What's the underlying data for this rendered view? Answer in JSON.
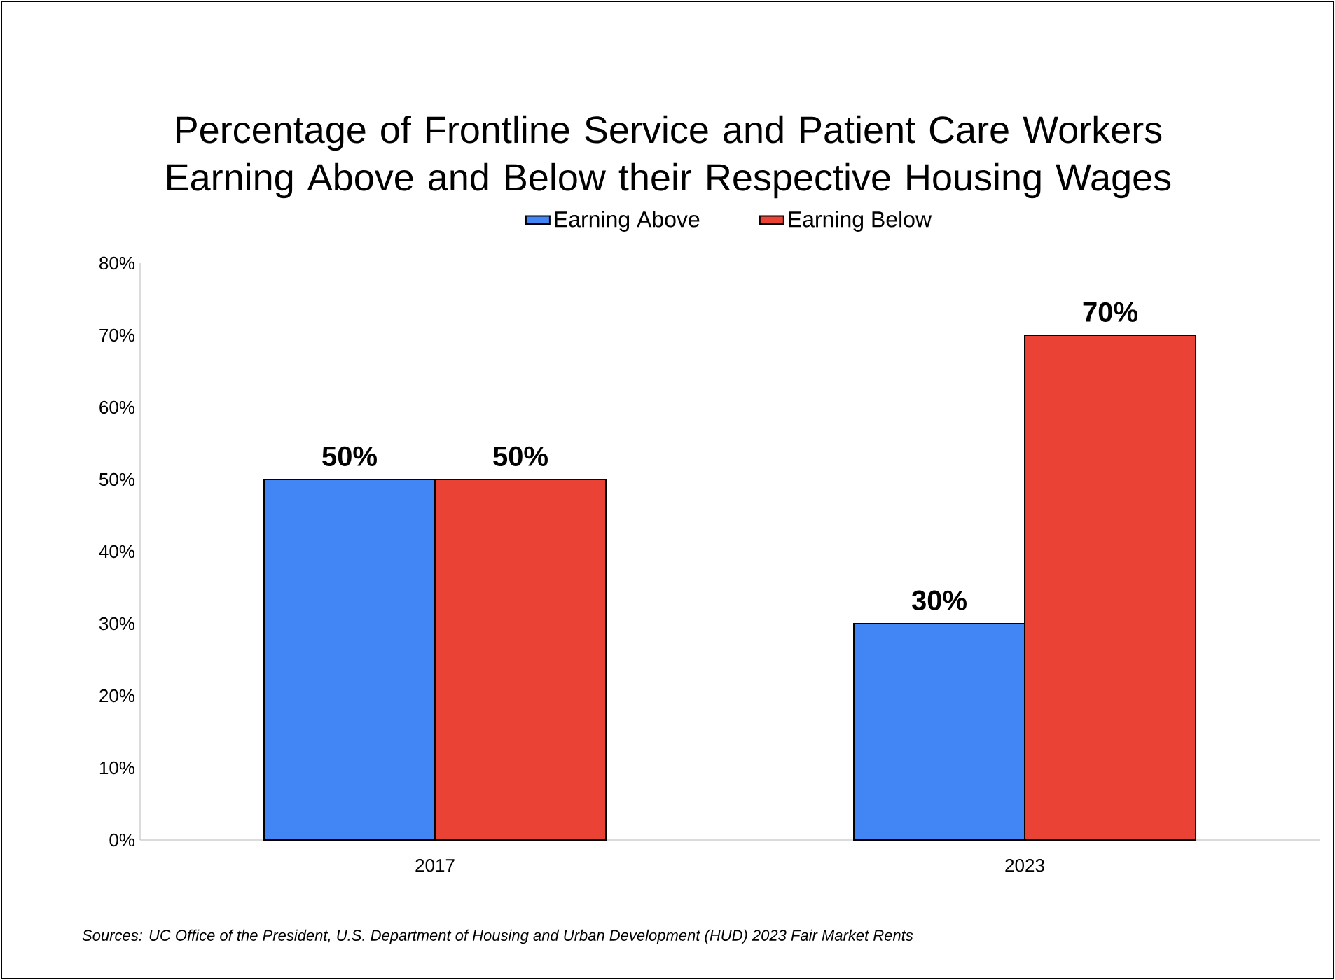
{
  "chart_data": {
    "type": "bar",
    "title": "Percentage of Frontline Service and Patient Care Workers Earning Above and Below their Respective Housing Wages",
    "categories": [
      "2017",
      "2023"
    ],
    "series": [
      {
        "name": "Earning Above",
        "color": "#4285f4",
        "values": [
          50,
          30
        ],
        "value_labels": [
          "50%",
          "30%"
        ]
      },
      {
        "name": "Earning Below",
        "color": "#ea4335",
        "values": [
          50,
          70
        ],
        "value_labels": [
          "50%",
          "70%"
        ]
      }
    ],
    "ylim": [
      0,
      80
    ],
    "yticks": [
      {
        "value": 0,
        "label": "0%"
      },
      {
        "value": 10,
        "label": "10%"
      },
      {
        "value": 20,
        "label": "20%"
      },
      {
        "value": 30,
        "label": "30%"
      },
      {
        "value": 40,
        "label": "40%"
      },
      {
        "value": 50,
        "label": "50%"
      },
      {
        "value": 60,
        "label": "60%"
      },
      {
        "value": 70,
        "label": "70%"
      },
      {
        "value": 80,
        "label": "80%"
      }
    ],
    "legend": "top",
    "annotations": [
      "Sources: UC Office of the President, U.S. Department of Housing and Urban Development (HUD) 2023 Fair Market Rents"
    ]
  }
}
